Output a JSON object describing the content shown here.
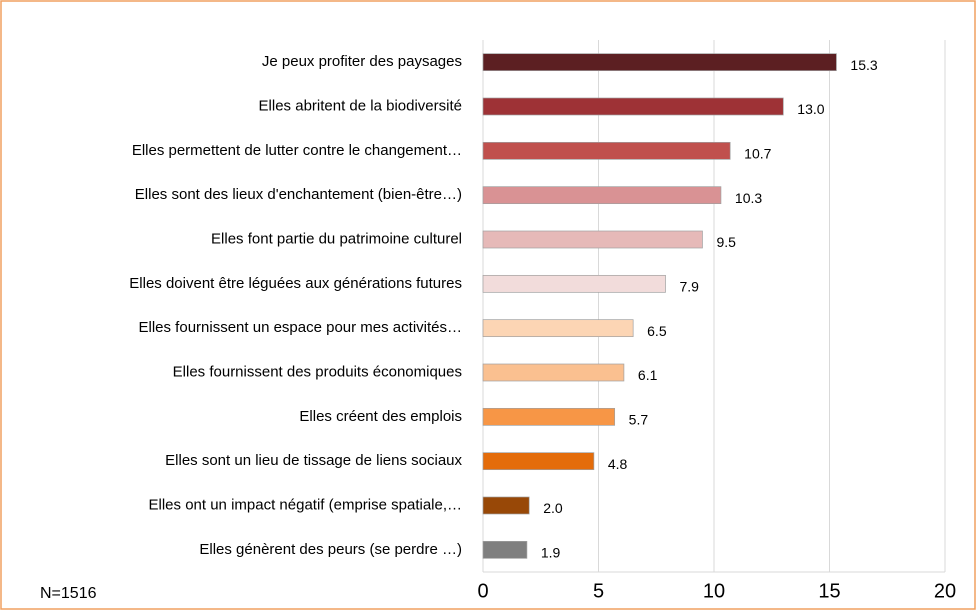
{
  "chart_data": {
    "type": "bar",
    "orientation": "horizontal",
    "categories": [
      "Je peux profiter des paysages",
      "Elles abritent de la biodiversité",
      "Elles permettent de lutter contre le changement…",
      "Elles sont des lieux d'enchantement (bien-être…)",
      "Elles font partie du patrimoine culturel",
      "Elles doivent être léguées aux générations futures",
      "Elles fournissent un espace pour mes activités…",
      "Elles fournissent des produits économiques",
      "Elles créent des emplois",
      "Elles sont un lieu de tissage de liens sociaux",
      "Elles ont un impact négatif (emprise spatiale,…",
      "Elles génèrent des peurs (se perdre …)"
    ],
    "values": [
      15.3,
      13.0,
      10.7,
      10.3,
      9.5,
      7.9,
      6.5,
      6.1,
      5.7,
      4.8,
      2.0,
      1.9
    ],
    "value_labels": [
      "15.3",
      "13.0",
      "10.7",
      "10.3",
      "9.5",
      "7.9",
      "6.5",
      "6.1",
      "5.7",
      "4.8",
      "2.0",
      "1.9"
    ],
    "colors": [
      "#5c1f22",
      "#9e3236",
      "#c0504d",
      "#d99294",
      "#e6b9b8",
      "#f2dcdb",
      "#fcd5b4",
      "#fac090",
      "#f79646",
      "#e46c0a",
      "#984807",
      "#7f7f7f"
    ],
    "xlim": [
      0,
      20
    ],
    "xticks": [
      0,
      5,
      10,
      15,
      20
    ],
    "grid": true,
    "annotation": "N=1516"
  }
}
